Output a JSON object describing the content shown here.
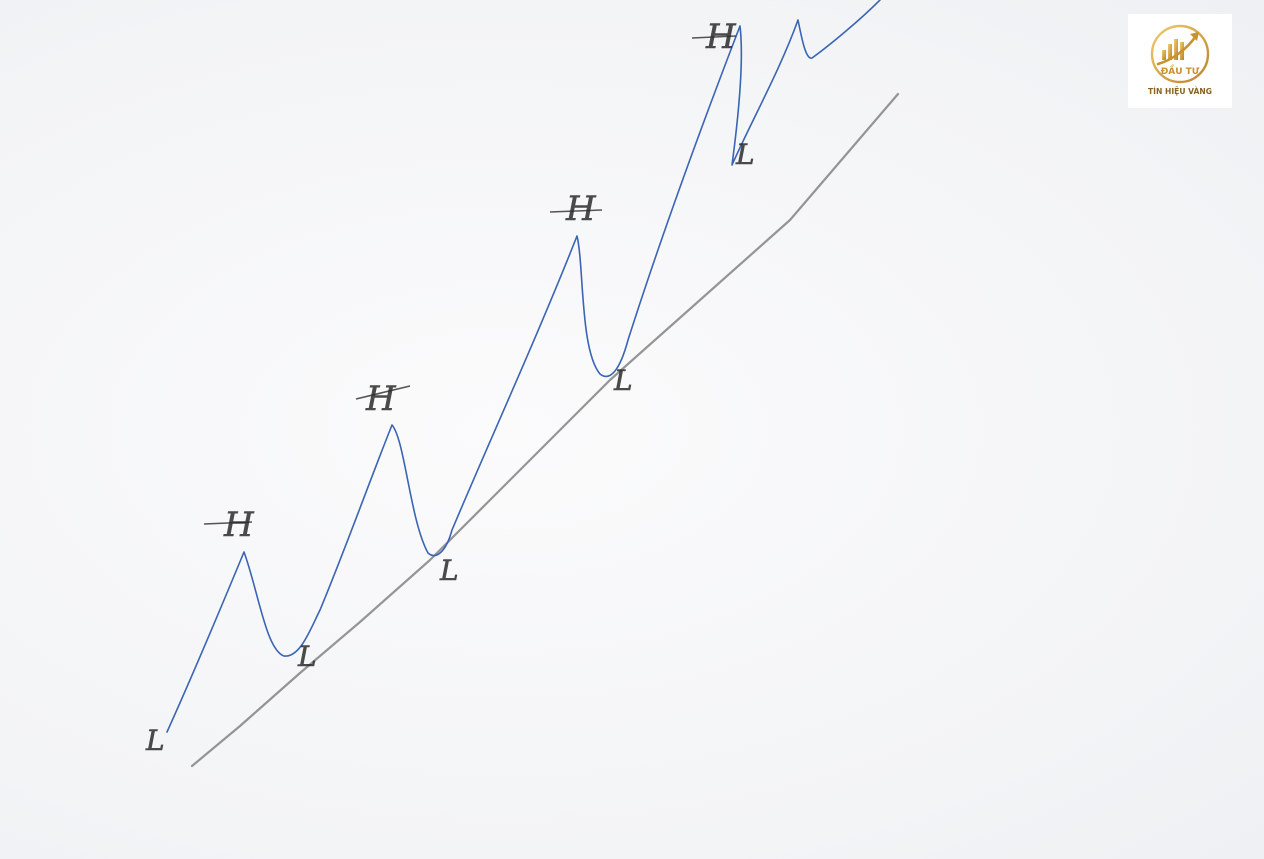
{
  "diagram": {
    "labels": {
      "high": "H",
      "low": "L"
    },
    "colors": {
      "price_line": "#3a64b4",
      "trend_line": "#8a8a8a",
      "pencil": "#2c2c2c"
    }
  },
  "logo": {
    "line1": "ĐẦU TƯ",
    "line2": "TÍN HIỆU VÀNG",
    "colors": {
      "gold": "#c9922e",
      "gold_light": "#e6b85a",
      "text_dark": "#8a6420"
    }
  }
}
